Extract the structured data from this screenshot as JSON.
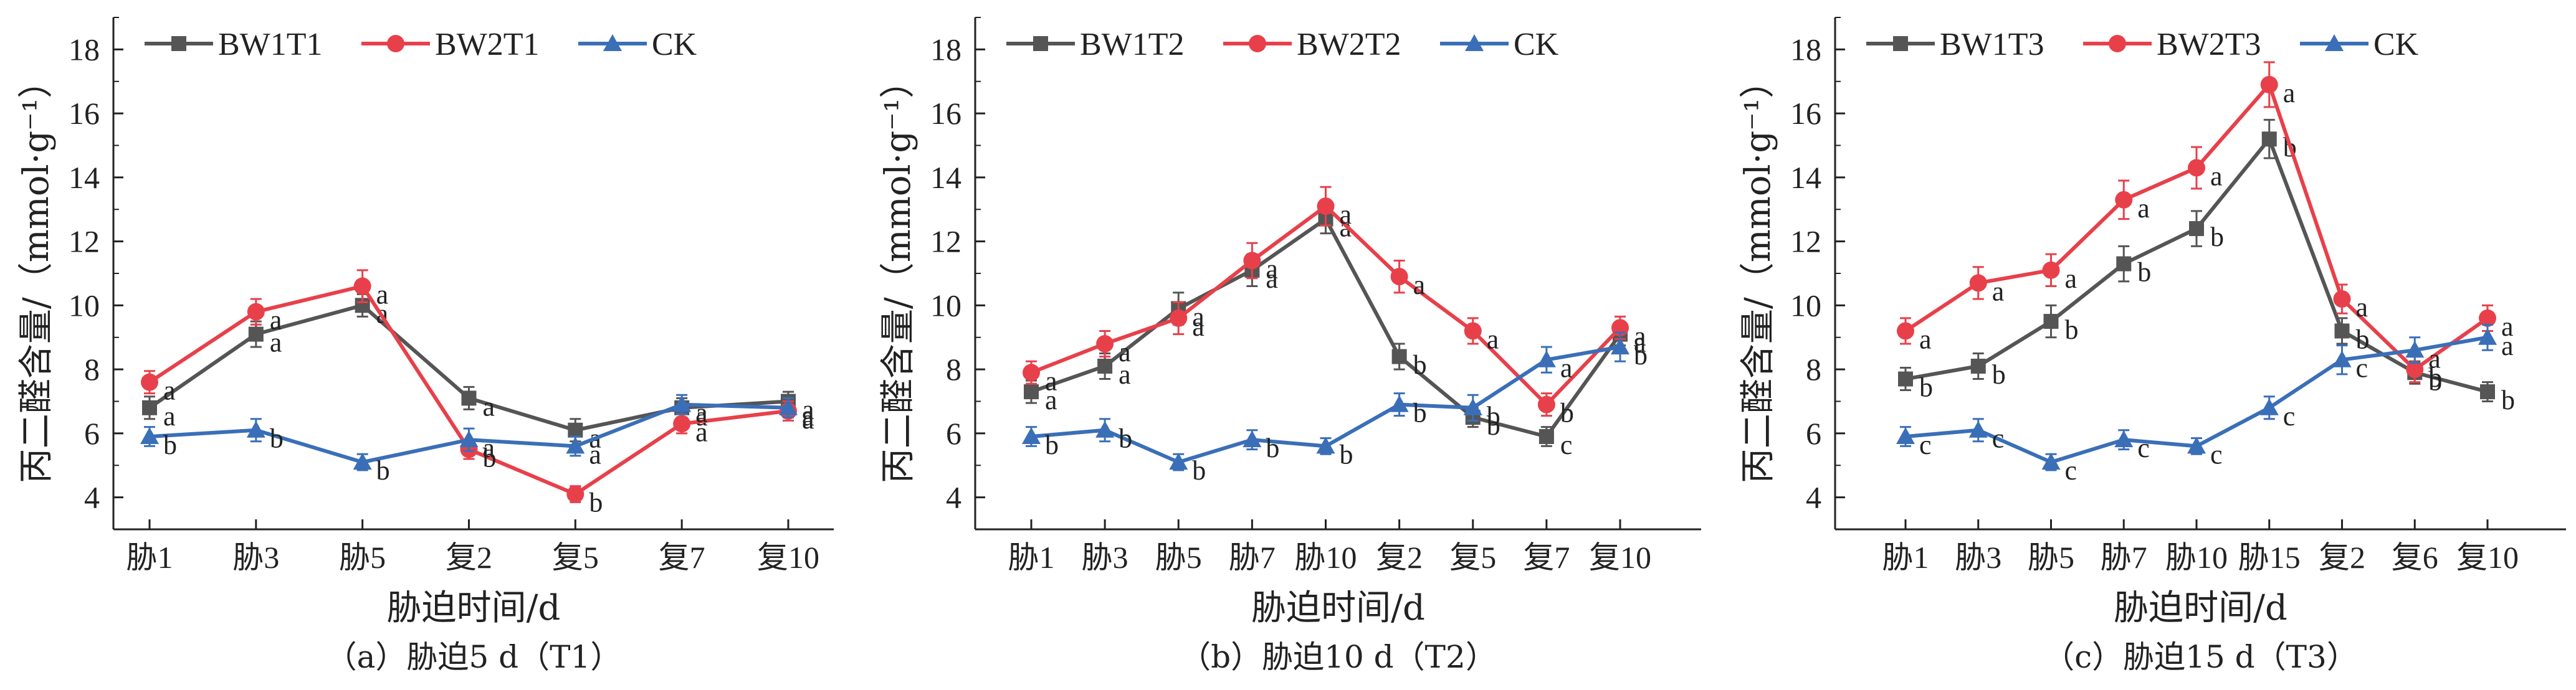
{
  "colors": {
    "BW1": "#555555",
    "BW2": "#e8404a",
    "CK": "#3a6fb8",
    "axis": "#222222",
    "sig": "#222222"
  },
  "chart_data": [
    {
      "type": "line",
      "caption": "（a）胁迫5 d（T1）",
      "xlabel": "胁迫时间/d",
      "ylabel": "丙二醛含量/（mmol·g⁻¹）",
      "ylim": [
        3,
        19
      ],
      "yticks": [
        4,
        6,
        8,
        10,
        12,
        14,
        16,
        18
      ],
      "categories": [
        "胁1",
        "胁3",
        "胁5",
        "复2",
        "复5",
        "复7",
        "复10"
      ],
      "series": [
        {
          "name": "BW1T1",
          "color_key": "BW1",
          "marker": "square",
          "values": [
            6.8,
            9.1,
            10.0,
            7.1,
            6.1,
            6.8,
            7.0
          ],
          "err": [
            0.35,
            0.4,
            0.35,
            0.35,
            0.35,
            0.3,
            0.3
          ],
          "sig": [
            "a",
            "a",
            "a",
            "a",
            "a",
            "a",
            "a"
          ]
        },
        {
          "name": "BW2T1",
          "color_key": "BW2",
          "marker": "circle",
          "values": [
            7.6,
            9.8,
            10.6,
            5.5,
            4.1,
            6.3,
            6.7
          ],
          "err": [
            0.35,
            0.4,
            0.5,
            0.3,
            0.25,
            0.3,
            0.3
          ],
          "sig": [
            "a",
            "a",
            "a",
            "b",
            "b",
            "a",
            "a"
          ]
        },
        {
          "name": "CK",
          "color_key": "CK",
          "marker": "triangle",
          "values": [
            5.9,
            6.1,
            5.1,
            5.8,
            5.6,
            6.9,
            6.8
          ],
          "err": [
            0.3,
            0.35,
            0.25,
            0.35,
            0.3,
            0.3,
            0.3
          ],
          "sig": [
            "b",
            "b",
            "b",
            "a",
            "a",
            "a",
            "a"
          ]
        }
      ]
    },
    {
      "type": "line",
      "caption": "（b）胁迫10 d（T2）",
      "xlabel": "胁迫时间/d",
      "ylabel": "丙二醛含量/（mmol·g⁻¹）",
      "ylim": [
        3,
        19
      ],
      "yticks": [
        4,
        6,
        8,
        10,
        12,
        14,
        16,
        18
      ],
      "categories": [
        "胁1",
        "胁3",
        "胁5",
        "胁7",
        "胁10",
        "复2",
        "复5",
        "复7",
        "复10"
      ],
      "series": [
        {
          "name": "BW1T2",
          "color_key": "BW1",
          "marker": "square",
          "values": [
            7.3,
            8.1,
            9.9,
            11.1,
            12.7,
            8.4,
            6.5,
            5.9,
            9.1
          ],
          "err": [
            0.35,
            0.4,
            0.5,
            0.5,
            0.45,
            0.4,
            0.3,
            0.3,
            0.35
          ],
          "sig": [
            "a",
            "a",
            "a",
            "a",
            "a",
            "b",
            "b",
            "c",
            "a"
          ]
        },
        {
          "name": "BW2T2",
          "color_key": "BW2",
          "marker": "circle",
          "values": [
            7.9,
            8.8,
            9.6,
            11.4,
            13.1,
            10.9,
            9.2,
            6.9,
            9.3
          ],
          "err": [
            0.35,
            0.4,
            0.5,
            0.55,
            0.6,
            0.5,
            0.4,
            0.35,
            0.35
          ],
          "sig": [
            "a",
            "a",
            "a",
            "a",
            "a",
            "a",
            "a",
            "b",
            "a"
          ]
        },
        {
          "name": "CK",
          "color_key": "CK",
          "marker": "triangle",
          "values": [
            5.9,
            6.1,
            5.1,
            5.8,
            5.6,
            6.9,
            6.8,
            8.3,
            8.7
          ],
          "err": [
            0.3,
            0.35,
            0.25,
            0.3,
            0.25,
            0.35,
            0.4,
            0.4,
            0.45
          ],
          "sig": [
            "b",
            "b",
            "b",
            "b",
            "b",
            "b",
            "b",
            "a",
            "b"
          ]
        }
      ]
    },
    {
      "type": "line",
      "caption": "（c）胁迫15 d（T3）",
      "xlabel": "胁迫时间/d",
      "ylabel": "丙二醛含量/（mmol·g⁻¹）",
      "ylim": [
        3,
        19
      ],
      "yticks": [
        4,
        6,
        8,
        10,
        12,
        14,
        16,
        18
      ],
      "categories": [
        "胁1",
        "胁3",
        "胁5",
        "胁7",
        "胁10",
        "胁15",
        "复2",
        "复6",
        "复10"
      ],
      "series": [
        {
          "name": "BW1T3",
          "color_key": "BW1",
          "marker": "square",
          "values": [
            7.7,
            8.1,
            9.5,
            11.3,
            12.4,
            15.2,
            9.2,
            7.9,
            7.3
          ],
          "err": [
            0.35,
            0.4,
            0.5,
            0.55,
            0.55,
            0.6,
            0.4,
            0.35,
            0.3
          ],
          "sig": [
            "b",
            "b",
            "b",
            "b",
            "b",
            "b",
            "b",
            "b",
            "b"
          ]
        },
        {
          "name": "BW2T3",
          "color_key": "BW2",
          "marker": "circle",
          "values": [
            9.2,
            10.7,
            11.1,
            13.3,
            14.3,
            16.9,
            10.2,
            8.0,
            9.6
          ],
          "err": [
            0.4,
            0.5,
            0.5,
            0.6,
            0.65,
            0.7,
            0.45,
            0.4,
            0.4
          ],
          "sig": [
            "a",
            "a",
            "a",
            "a",
            "a",
            "a",
            "a",
            "b",
            "a"
          ]
        },
        {
          "name": "CK",
          "color_key": "CK",
          "marker": "triangle",
          "values": [
            5.9,
            6.1,
            5.1,
            5.8,
            5.6,
            6.8,
            8.3,
            8.6,
            9.0
          ],
          "err": [
            0.3,
            0.35,
            0.25,
            0.3,
            0.25,
            0.35,
            0.45,
            0.4,
            0.4
          ],
          "sig": [
            "c",
            "c",
            "c",
            "c",
            "c",
            "c",
            "c",
            "a",
            "a"
          ]
        }
      ]
    }
  ]
}
